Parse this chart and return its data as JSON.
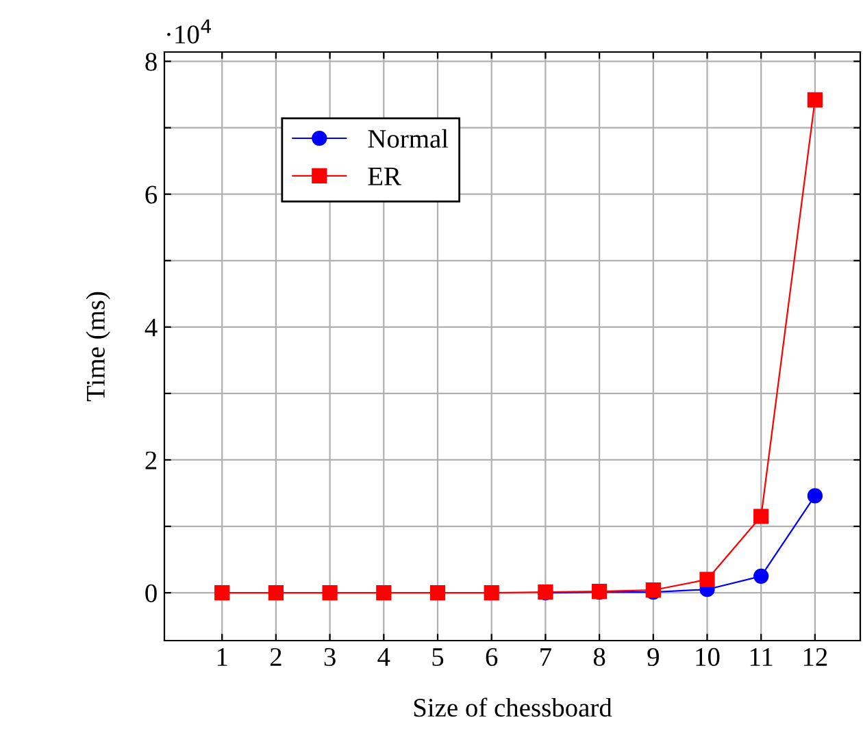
{
  "chart_data": {
    "type": "line",
    "xlabel": "Size of chessboard",
    "ylabel": "Time (ms)",
    "x": [
      1,
      2,
      3,
      4,
      5,
      6,
      7,
      8,
      9,
      10,
      11,
      12
    ],
    "series": [
      {
        "name": "Normal",
        "color": "#0000ff",
        "marker": "circle",
        "values": [
          null,
          null,
          null,
          null,
          null,
          null,
          0,
          0.01,
          0.01,
          0.05,
          0.25,
          1.46
        ]
      },
      {
        "name": "ER",
        "color": "#ff0000",
        "marker": "square",
        "values": [
          0,
          0,
          0,
          0,
          0,
          0,
          0.01,
          0.02,
          0.04,
          0.2,
          1.15,
          7.42
        ]
      }
    ],
    "xlim": [
      -0.07,
      12.84
    ],
    "ylim": [
      -0.72,
      8.14
    ],
    "xticks": [
      1,
      2,
      3,
      4,
      5,
      6,
      7,
      8,
      9,
      10,
      11,
      12
    ],
    "yticks": [
      0,
      {
        "value": 1,
        "label": null
      },
      2,
      {
        "value": 3,
        "label": null
      },
      4,
      {
        "value": 5,
        "label": null
      },
      6,
      {
        "value": 7,
        "label": null
      },
      8
    ],
    "annotations": [
      "·10$^{4}$"
    ],
    "grid": true,
    "legend": "top left",
    "line_style": "solid"
  }
}
